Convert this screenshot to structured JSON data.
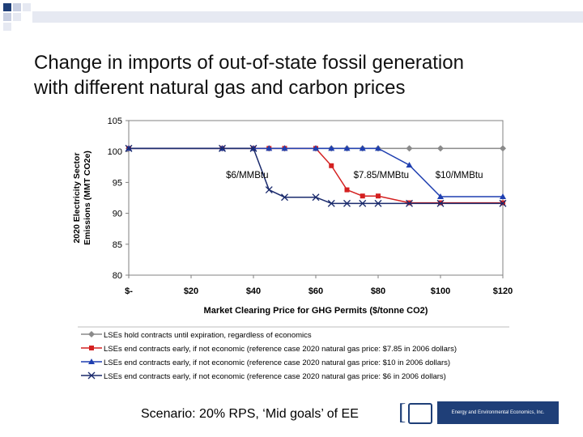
{
  "slide": {
    "title_line1": "Change in imports of out-of-state fossil generation",
    "title_line2": "with different natural gas and carbon prices",
    "footer": "Scenario: 20% RPS, ‘Mid goals’ of EE",
    "logo_text": "Energy and Environmental Economics, Inc."
  },
  "chart_data": {
    "type": "line",
    "ylabel": "2020 Electricity Sector Emissions (MMT CO2e)",
    "xlabel": "Market Clearing Price for GHG Permits ($/tonne CO2)",
    "ylim": [
      80,
      105
    ],
    "xlim": [
      0,
      120
    ],
    "y_ticks": [
      80,
      85,
      90,
      95,
      100,
      105
    ],
    "x_ticks": [
      0,
      20,
      40,
      60,
      80,
      100,
      120
    ],
    "x_tick_labels": [
      "$-",
      "$20",
      "$40",
      "$60",
      "$80",
      "$100",
      "$120"
    ],
    "y_tick_labels": [
      "80",
      "85",
      "90",
      "95",
      "100",
      "105"
    ],
    "grid": false,
    "legend_position": "bottom",
    "series": [
      {
        "name": "LSEs hold contracts until expiration, regardless of economics",
        "color": "#8a8a8a",
        "marker": "diamond",
        "x": [
          0,
          30,
          40,
          45,
          50,
          60,
          65,
          70,
          75,
          80,
          90,
          100,
          120
        ],
        "y": [
          100.5,
          100.5,
          100.5,
          100.5,
          100.5,
          100.5,
          100.5,
          100.5,
          100.5,
          100.5,
          100.5,
          100.5,
          100.5
        ]
      },
      {
        "name": "LSEs end contracts early, if not economic (reference case 2020 natural gas price: $7.85 in 2006 dollars)",
        "color": "#d42020",
        "marker": "square",
        "x": [
          0,
          30,
          40,
          45,
          50,
          60,
          65,
          70,
          75,
          80,
          90,
          100,
          120
        ],
        "y": [
          100.5,
          100.5,
          100.5,
          100.5,
          100.5,
          100.5,
          97.7,
          93.8,
          92.8,
          92.8,
          91.7,
          91.7,
          91.7
        ]
      },
      {
        "name": "LSEs end contracts early, if not economic (reference case 2020 natural gas price: $10 in 2006 dollars)",
        "color": "#1f3fb0",
        "marker": "triangle",
        "x": [
          0,
          30,
          40,
          45,
          50,
          60,
          65,
          70,
          75,
          80,
          90,
          100,
          120
        ],
        "y": [
          100.5,
          100.5,
          100.5,
          100.5,
          100.5,
          100.5,
          100.5,
          100.5,
          100.5,
          100.5,
          97.8,
          92.7,
          92.7
        ]
      },
      {
        "name": "LSEs end contracts early, if not economic (reference case 2020 natural gas price: $6 in 2006 dollars)",
        "color": "#1a2a6c",
        "marker": "x",
        "x": [
          0,
          30,
          40,
          45,
          50,
          60,
          65,
          70,
          75,
          80,
          90,
          100,
          120
        ],
        "y": [
          100.5,
          100.5,
          100.5,
          93.8,
          92.6,
          92.6,
          91.6,
          91.6,
          91.6,
          91.6,
          91.6,
          91.6,
          91.6
        ]
      }
    ],
    "annotations": [
      {
        "text": "$6/MMBtu",
        "x": 38,
        "y": 95.7
      },
      {
        "text": "$7.85/MMBtu",
        "x": 81,
        "y": 95.7
      },
      {
        "text": "$10/MMBtu",
        "x": 106,
        "y": 95.7
      }
    ]
  }
}
